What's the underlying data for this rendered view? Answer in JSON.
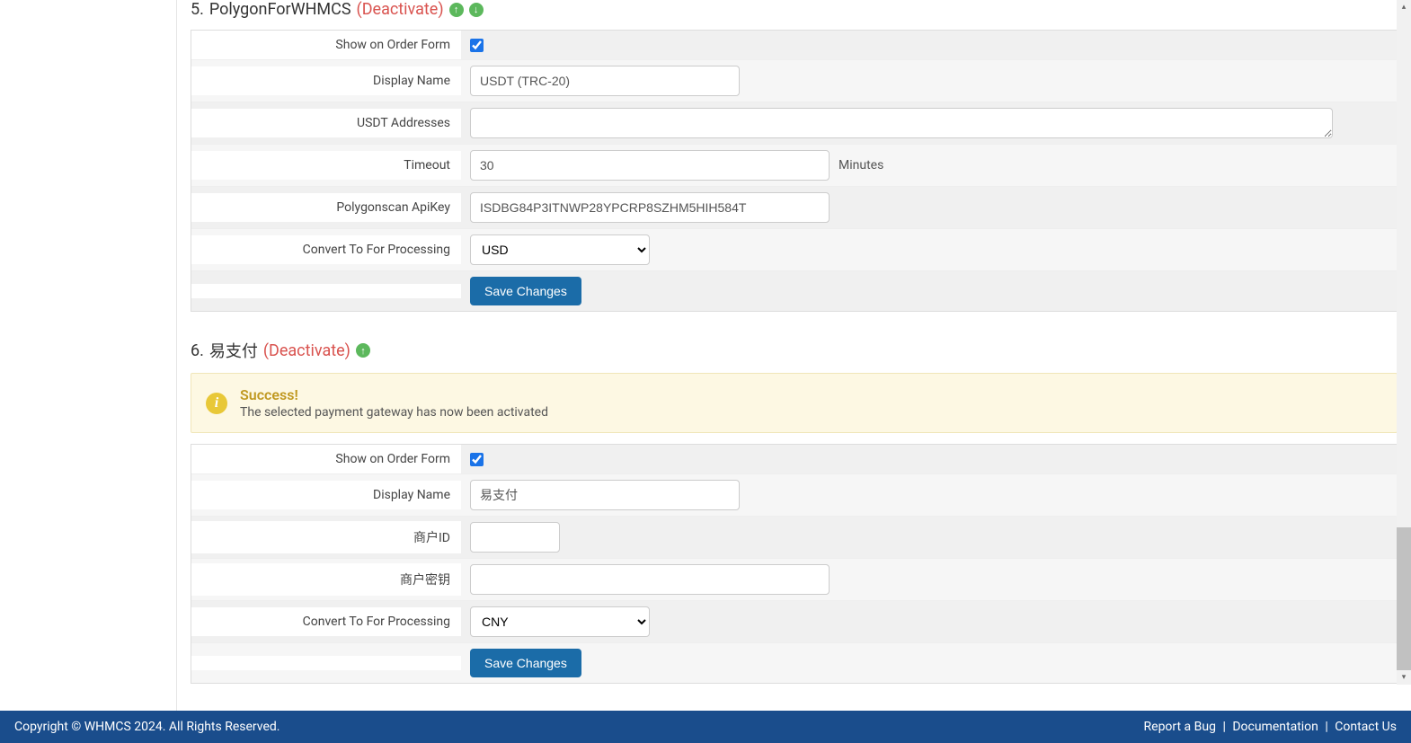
{
  "gateway1": {
    "number": "5.",
    "name": "PolygonForWHMCS",
    "deactivate": "(Deactivate)",
    "fields": {
      "show_on_order_form_label": "Show on Order Form",
      "show_on_order_form_checked": true,
      "display_name_label": "Display Name",
      "display_name_value": "USDT (TRC-20)",
      "usdt_addresses_label": "USDT Addresses",
      "usdt_addresses_value": "",
      "timeout_label": "Timeout",
      "timeout_value": "30",
      "timeout_suffix": "Minutes",
      "apikey_label": "Polygonscan ApiKey",
      "apikey_value": "ISDBG84P3ITNWP28YPCRP8SZHM5HIH584T",
      "convert_label": "Convert To For Processing",
      "convert_value": "USD",
      "save_button": "Save Changes"
    }
  },
  "gateway2": {
    "number": "6.",
    "name": "易支付",
    "deactivate": "(Deactivate)",
    "alert": {
      "title": "Success!",
      "message": "The selected payment gateway has now been activated"
    },
    "fields": {
      "show_on_order_form_label": "Show on Order Form",
      "show_on_order_form_checked": true,
      "display_name_label": "Display Name",
      "display_name_value": "易支付",
      "merchant_id_label": "商户ID",
      "merchant_id_value": "",
      "merchant_key_label": "商户密钥",
      "merchant_key_value": "",
      "convert_label": "Convert To For Processing",
      "convert_value": "CNY",
      "save_button": "Save Changes"
    }
  },
  "footer": {
    "copyright": "Copyright © WHMCS 2024. All Rights Reserved.",
    "report_bug": "Report a Bug",
    "documentation": "Documentation",
    "contact_us": "Contact Us"
  },
  "colors": {
    "deactivate": "#d9534f",
    "arrow_bg": "#5cb85c",
    "alert_bg": "#fdf8e3",
    "alert_border": "#f0e6b9",
    "alert_title": "#c09820",
    "alert_icon_bg": "#e8c838",
    "button_bg": "#1b6ca8",
    "footer_bg": "#1a4d8c"
  }
}
